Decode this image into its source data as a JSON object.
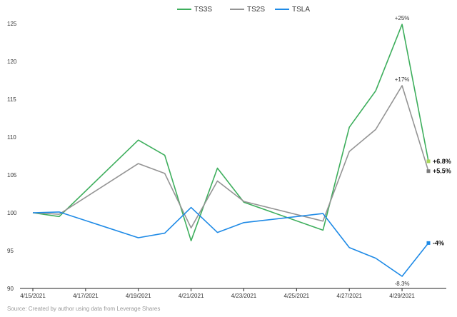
{
  "legend": {
    "items": [
      {
        "label": "TS3S",
        "color": "#3dae5c"
      },
      {
        "label": "TS2S",
        "color": "#949494"
      },
      {
        "label": "TSLA",
        "color": "#1e8ae6"
      }
    ]
  },
  "source": "Source: Created by author using data from Leverage Shares",
  "chart_data": {
    "type": "line",
    "title": "",
    "xlabel": "",
    "ylabel": "",
    "ylim": [
      90,
      127
    ],
    "yticks": [
      90,
      95,
      100,
      105,
      110,
      115,
      120,
      125
    ],
    "x": [
      "2021-04-15",
      "2021-04-16",
      "2021-04-19",
      "2021-04-20",
      "2021-04-21",
      "2021-04-22",
      "2021-04-23",
      "2021-04-26",
      "2021-04-27",
      "2021-04-28",
      "2021-04-29",
      "2021-04-30"
    ],
    "xticks": [
      "4/15/2021",
      "4/17/2021",
      "4/19/2021",
      "4/21/2021",
      "4/23/2021",
      "4/25/2021",
      "4/27/2021",
      "4/29/2021"
    ],
    "grid": false,
    "legend_position": "top",
    "series": [
      {
        "name": "TS3S",
        "color": "#3dae5c",
        "values": [
          100,
          99.5,
          109.6,
          107.6,
          96.3,
          105.9,
          101.4,
          97.7,
          111.3,
          116.1,
          124.9,
          106.8
        ]
      },
      {
        "name": "TS2S",
        "color": "#949494",
        "values": [
          100,
          99.8,
          106.5,
          105.2,
          98,
          104.2,
          101.5,
          98.9,
          108.1,
          111,
          116.8,
          105.5
        ]
      },
      {
        "name": "TSLA",
        "color": "#1e8ae6",
        "values": [
          100,
          100.1,
          96.7,
          97.3,
          100.7,
          97.4,
          98.7,
          99.9,
          95.4,
          94,
          91.6,
          96
        ]
      }
    ],
    "annotations": [
      {
        "text": "+25%",
        "series": "TS3S",
        "x": "2021-04-29",
        "y": 124.9,
        "position": "above",
        "bold": false
      },
      {
        "text": "+17%",
        "series": "TS2S",
        "x": "2021-04-29",
        "y": 116.8,
        "position": "above",
        "bold": false
      },
      {
        "text": "-8.3%",
        "series": "TSLA",
        "x": "2021-04-29",
        "y": 91.6,
        "position": "below",
        "bold": false
      },
      {
        "text": "+6.8%",
        "series": "TS3S",
        "x": "2021-04-30",
        "y": 106.8,
        "position": "right",
        "bold": true,
        "marker": "#a8d65a"
      },
      {
        "text": "+5.5%",
        "series": "TS2S",
        "x": "2021-04-30",
        "y": 105.5,
        "position": "right",
        "bold": true,
        "marker": "#7a7a7a"
      },
      {
        "text": "-4%",
        "series": "TSLA",
        "x": "2021-04-30",
        "y": 96,
        "position": "right",
        "bold": true,
        "marker": "#1e8ae6"
      }
    ]
  }
}
